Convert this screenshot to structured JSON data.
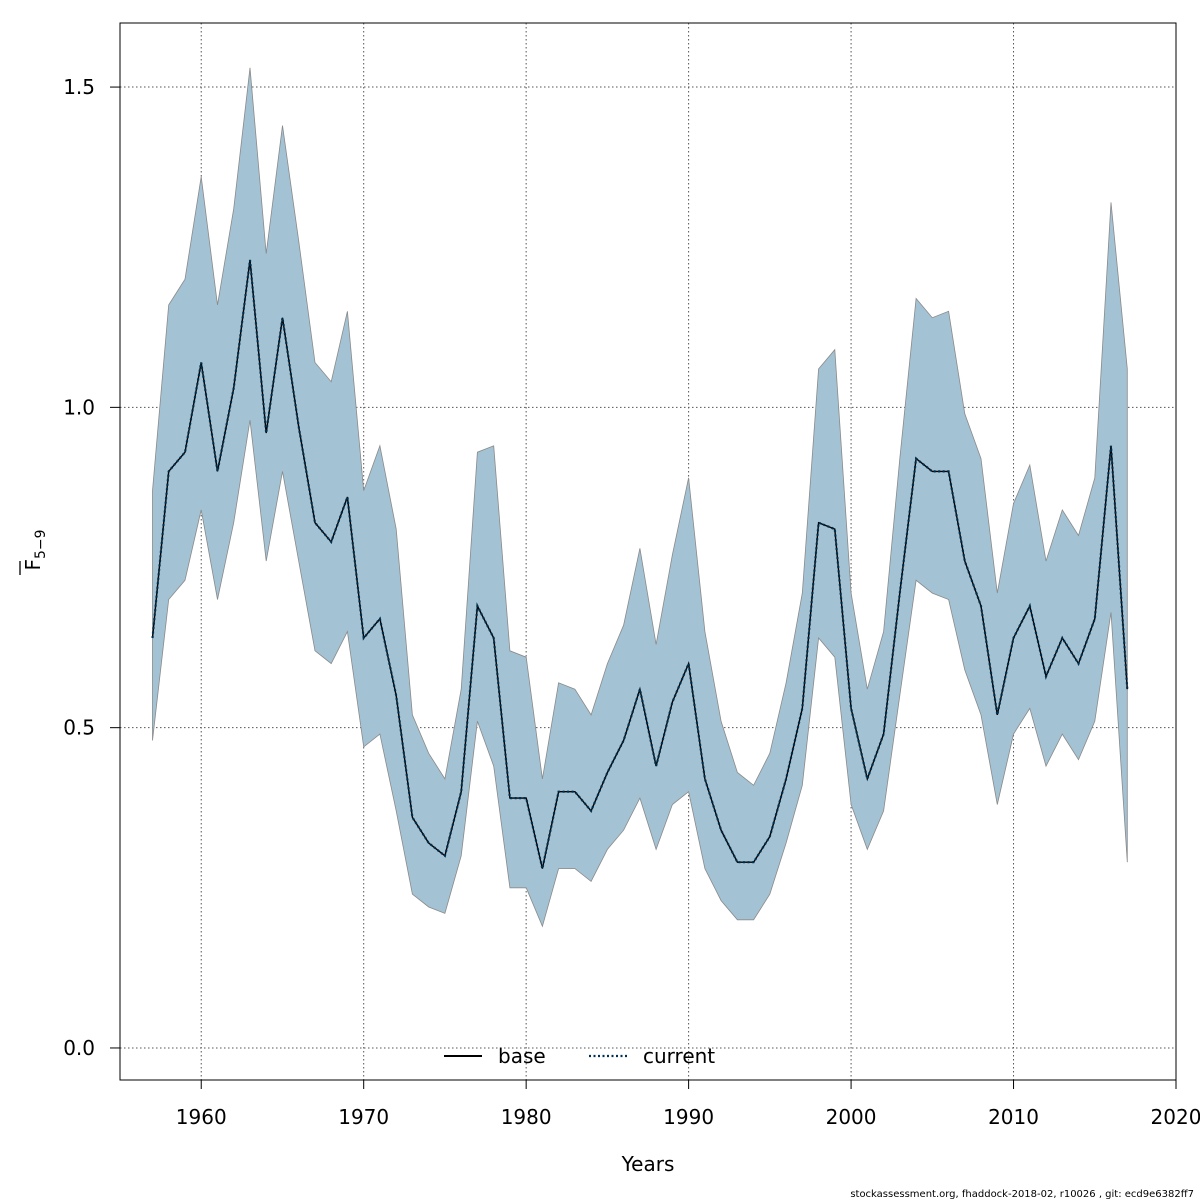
{
  "chart_data": {
    "type": "area",
    "xlabel": "Years",
    "ylabel": "F",
    "ylabel_subscript": "5−9",
    "xlim": [
      1955,
      2020
    ],
    "ylim": [
      -0.05,
      1.6
    ],
    "xticks": [
      1960,
      1970,
      1980,
      1990,
      2000,
      2010,
      2020
    ],
    "yticks": [
      0.0,
      0.5,
      1.0,
      1.5
    ],
    "xtick_labels": [
      "1960",
      "1970",
      "1980",
      "1990",
      "2000",
      "2010",
      "2020"
    ],
    "ytick_labels": [
      "0.0",
      "0.5",
      "1.0",
      "1.5"
    ],
    "grid": true,
    "legend_position": "bottom-center",
    "band_color": "#a3c2d3",
    "band_edge_color": "#8a8a8a",
    "line_color": "#003050",
    "years": [
      1957,
      1958,
      1959,
      1960,
      1961,
      1962,
      1963,
      1964,
      1965,
      1966,
      1967,
      1968,
      1969,
      1970,
      1971,
      1972,
      1973,
      1974,
      1975,
      1976,
      1977,
      1978,
      1979,
      1980,
      1981,
      1982,
      1983,
      1984,
      1985,
      1986,
      1987,
      1988,
      1989,
      1990,
      1991,
      1992,
      1993,
      1994,
      1995,
      1996,
      1997,
      1998,
      1999,
      2000,
      2001,
      2002,
      2003,
      2004,
      2005,
      2006,
      2007,
      2008,
      2009,
      2010,
      2011,
      2012,
      2013,
      2014,
      2015,
      2016,
      2017
    ],
    "upper": [
      0.87,
      1.16,
      1.2,
      1.36,
      1.16,
      1.31,
      1.53,
      1.24,
      1.44,
      1.26,
      1.07,
      1.04,
      1.15,
      0.87,
      0.94,
      0.81,
      0.52,
      0.46,
      0.42,
      0.56,
      0.93,
      0.94,
      0.62,
      0.61,
      0.42,
      0.57,
      0.56,
      0.52,
      0.6,
      0.66,
      0.78,
      0.63,
      0.77,
      0.89,
      0.65,
      0.51,
      0.43,
      0.41,
      0.46,
      0.57,
      0.71,
      1.06,
      1.09,
      0.71,
      0.56,
      0.65,
      0.92,
      1.17,
      1.14,
      1.15,
      0.99,
      0.92,
      0.71,
      0.85,
      0.91,
      0.76,
      0.84,
      0.8,
      0.89,
      1.32,
      1.06
    ],
    "lower": [
      0.48,
      0.7,
      0.73,
      0.84,
      0.7,
      0.82,
      0.98,
      0.76,
      0.9,
      0.76,
      0.62,
      0.6,
      0.65,
      0.47,
      0.49,
      0.37,
      0.24,
      0.22,
      0.21,
      0.3,
      0.51,
      0.44,
      0.25,
      0.25,
      0.19,
      0.28,
      0.28,
      0.26,
      0.31,
      0.34,
      0.39,
      0.31,
      0.38,
      0.4,
      0.28,
      0.23,
      0.2,
      0.2,
      0.24,
      0.32,
      0.41,
      0.64,
      0.61,
      0.38,
      0.31,
      0.37,
      0.55,
      0.73,
      0.71,
      0.7,
      0.59,
      0.52,
      0.38,
      0.49,
      0.53,
      0.44,
      0.49,
      0.45,
      0.51,
      0.68,
      0.29
    ],
    "series": [
      {
        "name": "base",
        "line_style": "solid",
        "values": [
          0.64,
          0.9,
          0.93,
          1.07,
          0.9,
          1.03,
          1.23,
          0.96,
          1.14,
          0.97,
          0.82,
          0.79,
          0.86,
          0.64,
          0.67,
          0.55,
          0.36,
          0.32,
          0.3,
          0.4,
          0.69,
          0.64,
          0.39,
          0.39,
          0.28,
          0.4,
          0.4,
          0.37,
          0.43,
          0.48,
          0.56,
          0.44,
          0.54,
          0.6,
          0.42,
          0.34,
          0.29,
          0.29,
          0.33,
          0.42,
          0.53,
          0.82,
          0.81,
          0.53,
          0.42,
          0.49,
          0.71,
          0.92,
          0.9,
          0.9,
          0.76,
          0.69,
          0.52,
          0.64,
          0.69,
          0.58,
          0.64,
          0.6,
          0.67,
          0.94,
          0.56
        ]
      },
      {
        "name": "current",
        "line_style": "dotted",
        "values": [
          0.64,
          0.9,
          0.93,
          1.07,
          0.9,
          1.03,
          1.23,
          0.96,
          1.14,
          0.97,
          0.82,
          0.79,
          0.86,
          0.64,
          0.67,
          0.55,
          0.36,
          0.32,
          0.3,
          0.4,
          0.69,
          0.64,
          0.39,
          0.39,
          0.28,
          0.4,
          0.4,
          0.37,
          0.43,
          0.48,
          0.56,
          0.44,
          0.54,
          0.6,
          0.42,
          0.34,
          0.29,
          0.29,
          0.33,
          0.42,
          0.53,
          0.82,
          0.81,
          0.53,
          0.42,
          0.49,
          0.71,
          0.92,
          0.9,
          0.9,
          0.76,
          0.69,
          0.52,
          0.64,
          0.69,
          0.58,
          0.64,
          0.6,
          0.67,
          0.94,
          0.56
        ]
      }
    ]
  },
  "footer": "stockassessment.org, fhaddock-2018-02, r10026 , git: ecd9e6382ff7"
}
